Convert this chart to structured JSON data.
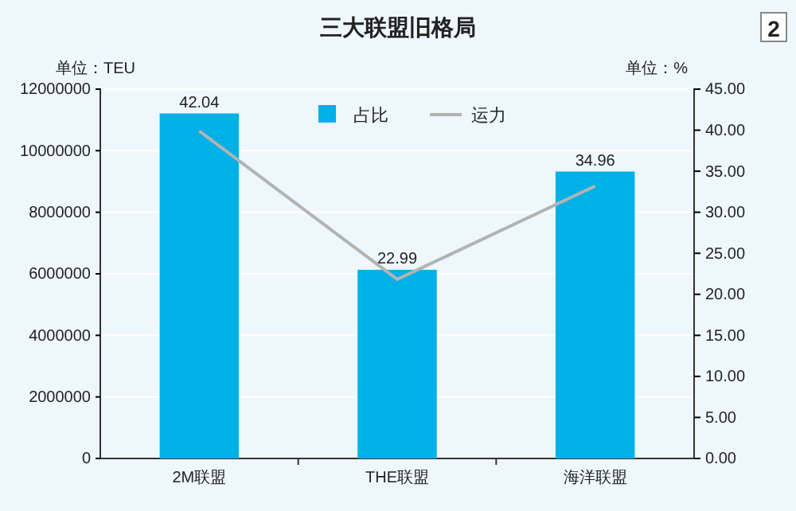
{
  "chart_data": {
    "type": "bar",
    "title": "三大联盟旧格局",
    "categories": [
      "2M联盟",
      "THE联盟",
      "海洋联盟"
    ],
    "series": [
      {
        "name": "占比",
        "axis": "y2",
        "color": "#00b0e6",
        "values": [
          42.04,
          22.99,
          34.96
        ],
        "value_labels": [
          "42.04",
          "22.99",
          "34.96"
        ]
      },
      {
        "name": "运力",
        "type": "line",
        "color": "#b3b3b3",
        "values": [
          10640000,
          5820000,
          8850000
        ]
      }
    ],
    "ylabel": "单位：TEU",
    "y2label": "单位：%",
    "ylim": [
      0,
      12000000
    ],
    "yticks": [
      0,
      2000000,
      4000000,
      6000000,
      8000000,
      10000000,
      12000000
    ],
    "y2lim": [
      0,
      45
    ],
    "y2ticks": [
      {
        "value": 0,
        "label": "0.00"
      },
      {
        "value": 5,
        "label": "5.00"
      },
      {
        "value": 10,
        "label": "10.00"
      },
      {
        "value": 15,
        "label": "15.00"
      },
      {
        "value": 20,
        "label": "20.00"
      },
      {
        "value": 25,
        "label": "25.00"
      },
      {
        "value": 30,
        "label": "30.00"
      },
      {
        "value": 35,
        "label": "35.00"
      },
      {
        "value": 40,
        "label": "40.00"
      },
      {
        "value": 45,
        "label": "45.00"
      }
    ],
    "grid": "y",
    "legend": "top",
    "marker": "none",
    "line_style": "solid",
    "annotations": [
      "2"
    ]
  }
}
